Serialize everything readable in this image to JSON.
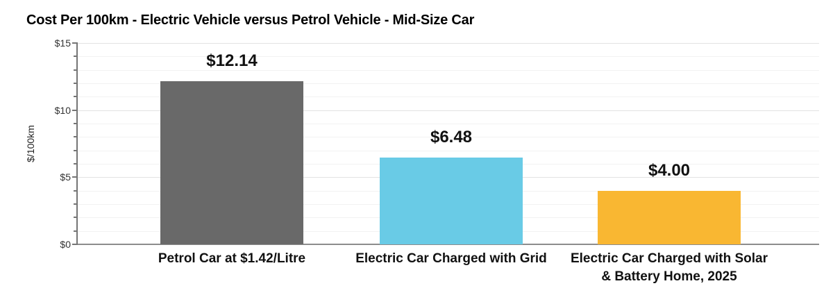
{
  "title": "Cost Per 100km - Electric Vehicle versus Petrol Vehicle - Mid-Size Car",
  "chart_data": {
    "type": "bar",
    "title": "Cost Per 100km - Electric Vehicle versus Petrol Vehicle - Mid-Size Car",
    "xlabel": "",
    "ylabel": "$/100km",
    "ylim": [
      0,
      15
    ],
    "ytick_major_step": 5,
    "ytick_minor_step": 1,
    "ytick_labels": [
      "$0",
      "$5",
      "$10",
      "$15"
    ],
    "grid": true,
    "legend": false,
    "categories": [
      "Petrol Car at $1.42/Litre",
      "Electric Car Charged with Grid",
      "Electric Car Charged with Solar & Battery Home, 2025"
    ],
    "category_label_lines": [
      [
        "Petrol Car at $1.42/Litre"
      ],
      [
        "Electric Car Charged with Grid"
      ],
      [
        "Electric Car Charged with Solar",
        "& Battery Home, 2025"
      ]
    ],
    "values": [
      12.14,
      6.48,
      4.0
    ],
    "data_labels": [
      "$12.14",
      "$6.48",
      "$4.00"
    ],
    "bar_colors": [
      "#696969",
      "#69CBE6",
      "#F9B732"
    ],
    "bar_names": [
      "bar-petrol-car",
      "bar-ev-grid",
      "bar-ev-solar-battery"
    ]
  },
  "colors": {
    "background": "#ffffff",
    "axis": "#757575",
    "baseline": "#8c8c8c",
    "gridline_major": "#e2e2e2",
    "gridline_minor": "#f2f2f2",
    "text": "#111111"
  }
}
